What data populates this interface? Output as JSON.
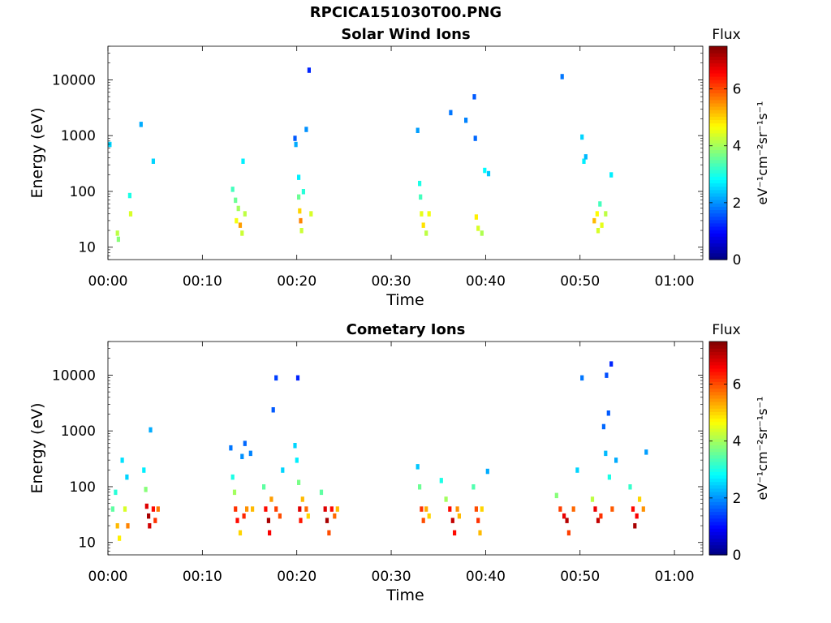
{
  "figure_title": "RPCICA151030T00.PNG",
  "colors": {
    "jet": [
      "#00007f",
      "#0000ff",
      "#0080ff",
      "#00ffff",
      "#80ff80",
      "#ffff00",
      "#ff8000",
      "#ff0000",
      "#7f0000"
    ]
  },
  "chart_data": [
    {
      "type": "heatmap",
      "title": "Solar Wind Ions",
      "xlabel": "Time",
      "ylabel": "Energy (eV)",
      "x_ticks": [
        "00:00",
        "00:10",
        "00:20",
        "00:30",
        "00:40",
        "00:50",
        "01:00"
      ],
      "x_range_minutes": [
        0,
        63
      ],
      "y_scale": "log",
      "y_ticks": [
        "10",
        "100",
        "1000",
        "10000"
      ],
      "y_range": [
        6,
        40000
      ],
      "colorbar": {
        "label": "Flux",
        "units": "eV⁻¹cm⁻²sr⁻¹s⁻¹",
        "ticks": [
          "0",
          "2",
          "4",
          "6"
        ],
        "range": [
          0,
          7.5
        ]
      },
      "cells": [
        [
          0.2,
          700,
          2.5
        ],
        [
          1.0,
          18,
          4.2
        ],
        [
          1.1,
          14,
          3.8
        ],
        [
          2.3,
          85,
          3.0
        ],
        [
          2.4,
          40,
          4.4
        ],
        [
          3.5,
          1600,
          2.2
        ],
        [
          4.8,
          350,
          2.5
        ],
        [
          13.2,
          110,
          3.3
        ],
        [
          13.5,
          70,
          3.6
        ],
        [
          13.6,
          30,
          4.6
        ],
        [
          13.8,
          50,
          4.0
        ],
        [
          14.0,
          25,
          5.4
        ],
        [
          14.2,
          18,
          4.3
        ],
        [
          14.3,
          350,
          2.7
        ],
        [
          14.5,
          40,
          4.2
        ],
        [
          19.8,
          900,
          1.6
        ],
        [
          19.9,
          700,
          2.2
        ],
        [
          20.2,
          180,
          2.7
        ],
        [
          20.2,
          80,
          3.6
        ],
        [
          20.3,
          45,
          5.0
        ],
        [
          20.4,
          30,
          5.6
        ],
        [
          20.5,
          20,
          4.3
        ],
        [
          20.7,
          100,
          3.1
        ],
        [
          21.0,
          1300,
          2.0
        ],
        [
          21.3,
          15000,
          1.2
        ],
        [
          21.5,
          40,
          4.4
        ],
        [
          32.8,
          1250,
          2.1
        ],
        [
          33.0,
          140,
          3.0
        ],
        [
          33.1,
          80,
          3.3
        ],
        [
          33.2,
          40,
          4.5
        ],
        [
          33.4,
          25,
          4.9
        ],
        [
          33.7,
          18,
          4.2
        ],
        [
          34.0,
          40,
          4.6
        ],
        [
          36.3,
          2600,
          1.8
        ],
        [
          37.9,
          1900,
          1.9
        ],
        [
          38.8,
          5000,
          1.6
        ],
        [
          38.9,
          900,
          1.7
        ],
        [
          39.0,
          35,
          4.8
        ],
        [
          39.2,
          22,
          4.4
        ],
        [
          39.6,
          18,
          4.1
        ],
        [
          39.9,
          240,
          2.8
        ],
        [
          40.3,
          210,
          2.4
        ],
        [
          48.1,
          11500,
          1.8
        ],
        [
          50.2,
          950,
          2.5
        ],
        [
          50.4,
          350,
          2.7
        ],
        [
          50.6,
          420,
          2.3
        ],
        [
          51.5,
          30,
          5.2
        ],
        [
          51.8,
          40,
          4.7
        ],
        [
          51.9,
          20,
          4.4
        ],
        [
          52.1,
          60,
          3.3
        ],
        [
          52.3,
          25,
          4.5
        ],
        [
          52.7,
          40,
          4.2
        ],
        [
          53.3,
          200,
          2.7
        ]
      ]
    },
    {
      "type": "heatmap",
      "title": "Cometary Ions",
      "xlabel": "Time",
      "ylabel": "Energy (eV)",
      "x_ticks": [
        "00:00",
        "00:10",
        "00:20",
        "00:30",
        "00:40",
        "00:50",
        "01:00"
      ],
      "x_range_minutes": [
        0,
        63
      ],
      "y_scale": "log",
      "y_ticks": [
        "10",
        "100",
        "1000",
        "10000"
      ],
      "y_range": [
        6,
        40000
      ],
      "colorbar": {
        "label": "Flux",
        "units": "eV⁻¹cm⁻²sr⁻¹s⁻¹",
        "ticks": [
          "0",
          "2",
          "4",
          "6"
        ],
        "range": [
          0,
          7.5
        ]
      },
      "cells": [
        [
          0.5,
          40,
          3.5
        ],
        [
          0.8,
          80,
          3.1
        ],
        [
          1.0,
          20,
          5.2
        ],
        [
          1.2,
          12,
          4.8
        ],
        [
          1.5,
          300,
          2.6
        ],
        [
          1.8,
          40,
          4.4
        ],
        [
          2.0,
          150,
          2.5
        ],
        [
          2.1,
          20,
          5.6
        ],
        [
          3.8,
          200,
          2.7
        ],
        [
          4.0,
          90,
          3.8
        ],
        [
          4.1,
          45,
          6.8
        ],
        [
          4.3,
          30,
          7.2
        ],
        [
          4.4,
          20,
          6.9
        ],
        [
          4.5,
          1050,
          2.2
        ],
        [
          4.8,
          40,
          6.5
        ],
        [
          5.0,
          25,
          6.2
        ],
        [
          5.3,
          40,
          5.7
        ],
        [
          13.0,
          500,
          1.8
        ],
        [
          13.2,
          150,
          3.0
        ],
        [
          13.4,
          80,
          4.0
        ],
        [
          13.5,
          40,
          6.2
        ],
        [
          13.7,
          25,
          6.5
        ],
        [
          14.0,
          15,
          5.0
        ],
        [
          14.2,
          350,
          2.0
        ],
        [
          14.4,
          30,
          6.3
        ],
        [
          14.5,
          600,
          1.7
        ],
        [
          14.7,
          40,
          5.5
        ],
        [
          15.1,
          400,
          1.9
        ],
        [
          15.3,
          40,
          5.2
        ],
        [
          16.5,
          100,
          3.5
        ],
        [
          16.7,
          40,
          6.5
        ],
        [
          17.0,
          25,
          7.2
        ],
        [
          17.1,
          15,
          6.6
        ],
        [
          17.3,
          60,
          5.4
        ],
        [
          17.5,
          2400,
          1.6
        ],
        [
          17.8,
          9000,
          1.4
        ],
        [
          17.8,
          40,
          6.1
        ],
        [
          18.2,
          30,
          6.0
        ],
        [
          18.5,
          200,
          2.5
        ],
        [
          19.8,
          550,
          2.5
        ],
        [
          20.0,
          300,
          2.7
        ],
        [
          20.1,
          9000,
          1.2
        ],
        [
          20.2,
          120,
          3.7
        ],
        [
          20.3,
          40,
          6.8
        ],
        [
          20.4,
          25,
          6.4
        ],
        [
          20.6,
          60,
          5.2
        ],
        [
          21.0,
          40,
          5.8
        ],
        [
          21.2,
          30,
          5.0
        ],
        [
          22.6,
          80,
          3.5
        ],
        [
          23.0,
          40,
          6.8
        ],
        [
          23.2,
          25,
          7.2
        ],
        [
          23.4,
          15,
          6.0
        ],
        [
          23.7,
          40,
          6.5
        ],
        [
          24.0,
          30,
          5.8
        ],
        [
          24.3,
          40,
          5.2
        ],
        [
          32.8,
          230,
          2.4
        ],
        [
          33.0,
          100,
          3.6
        ],
        [
          33.2,
          40,
          6.2
        ],
        [
          33.4,
          25,
          6.0
        ],
        [
          33.7,
          40,
          5.3
        ],
        [
          34.0,
          30,
          5.0
        ],
        [
          35.3,
          130,
          3.0
        ],
        [
          35.8,
          60,
          4.0
        ],
        [
          36.2,
          40,
          6.5
        ],
        [
          36.5,
          25,
          7.0
        ],
        [
          36.7,
          15,
          6.5
        ],
        [
          37.0,
          40,
          5.5
        ],
        [
          37.2,
          30,
          5.2
        ],
        [
          38.7,
          100,
          3.4
        ],
        [
          39.0,
          40,
          6.0
        ],
        [
          39.2,
          25,
          6.2
        ],
        [
          39.4,
          15,
          5.2
        ],
        [
          39.6,
          40,
          5.0
        ],
        [
          40.2,
          190,
          2.2
        ],
        [
          47.5,
          70,
          3.8
        ],
        [
          47.9,
          40,
          6.1
        ],
        [
          48.3,
          30,
          6.7
        ],
        [
          48.6,
          25,
          7.1
        ],
        [
          48.8,
          15,
          6.1
        ],
        [
          49.3,
          40,
          5.8
        ],
        [
          49.7,
          200,
          2.5
        ],
        [
          50.2,
          9000,
          1.8
        ],
        [
          51.3,
          60,
          4.2
        ],
        [
          51.6,
          40,
          6.7
        ],
        [
          51.9,
          25,
          7.0
        ],
        [
          52.2,
          30,
          6.2
        ],
        [
          52.5,
          1200,
          1.7
        ],
        [
          52.7,
          400,
          2.3
        ],
        [
          52.8,
          10000,
          1.5
        ],
        [
          53.0,
          2100,
          1.6
        ],
        [
          53.1,
          150,
          3.0
        ],
        [
          53.3,
          16000,
          1.2
        ],
        [
          53.4,
          40,
          5.9
        ],
        [
          53.8,
          300,
          2.2
        ],
        [
          55.3,
          100,
          3.2
        ],
        [
          55.6,
          40,
          6.5
        ],
        [
          55.8,
          20,
          7.2
        ],
        [
          56.0,
          30,
          6.6
        ],
        [
          56.3,
          60,
          5.0
        ],
        [
          56.7,
          40,
          5.5
        ],
        [
          57.0,
          420,
          2.1
        ]
      ]
    }
  ]
}
